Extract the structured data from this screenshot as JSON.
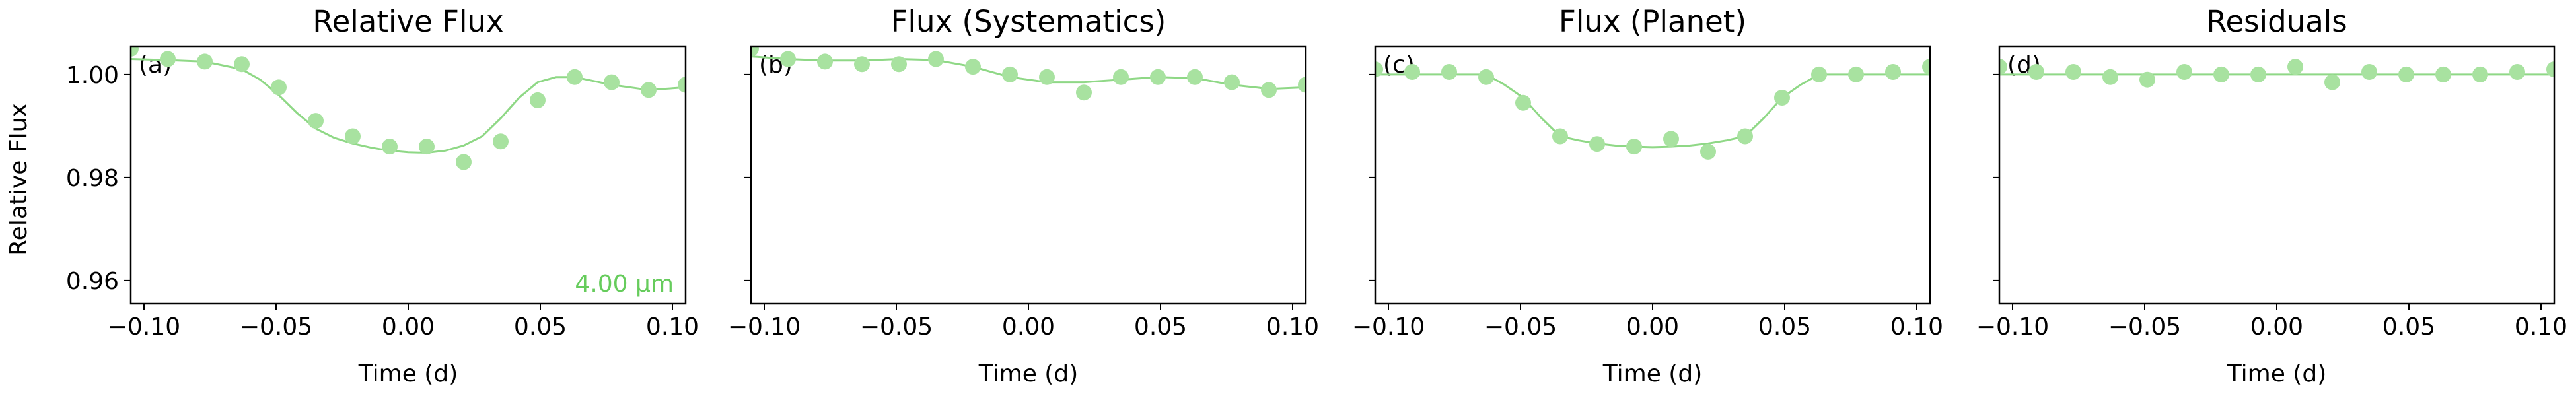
{
  "figure": {
    "ylabel": "Relative Flux",
    "annotation": "4.00 μm",
    "colors": {
      "point": "#a8e2a0",
      "model": "#8fd886",
      "annotation": "#66cc5c",
      "axis": "#000000"
    }
  },
  "chart_data": [
    {
      "type": "scatter",
      "title": "Relative Flux",
      "panel_label": "(a)",
      "xlabel": "Time (d)",
      "ylabel": "Relative Flux",
      "xlim": [
        -0.105,
        0.105
      ],
      "ylim": [
        0.9555,
        1.0055
      ],
      "xticks": [
        "-0.10",
        "-0.05",
        "0.00",
        "0.05",
        "0.10"
      ],
      "yticks": [
        "0.96",
        "0.98",
        "1.00"
      ],
      "show_yticklabels": true,
      "points": {
        "x": [
          -0.105,
          -0.091,
          -0.077,
          -0.063,
          -0.049,
          -0.035,
          -0.021,
          -0.007,
          0.007,
          0.021,
          0.035,
          0.049,
          0.063,
          0.077,
          0.091,
          0.105
        ],
        "y": [
          1.005,
          1.003,
          1.0025,
          1.002,
          0.9975,
          0.991,
          0.988,
          0.986,
          0.986,
          0.983,
          0.987,
          0.995,
          0.9995,
          0.9985,
          0.997,
          0.998
        ]
      },
      "model": {
        "x": [
          -0.105,
          -0.091,
          -0.077,
          -0.063,
          -0.056,
          -0.049,
          -0.042,
          -0.035,
          -0.028,
          -0.021,
          -0.014,
          -0.007,
          0.0,
          0.007,
          0.014,
          0.021,
          0.028,
          0.035,
          0.042,
          0.049,
          0.056,
          0.063,
          0.077,
          0.091,
          0.105
        ],
        "y": [
          1.003,
          1.0028,
          1.0025,
          1.001,
          0.999,
          0.996,
          0.9925,
          0.9895,
          0.9877,
          0.9866,
          0.9858,
          0.9852,
          0.9849,
          0.9848,
          0.9852,
          0.9862,
          0.988,
          0.9915,
          0.9955,
          0.9985,
          0.9995,
          0.9995,
          0.998,
          0.997,
          0.9975
        ]
      }
    },
    {
      "type": "scatter",
      "title": "Flux (Systematics)",
      "panel_label": "(b)",
      "xlabel": "Time (d)",
      "ylabel": "",
      "xlim": [
        -0.105,
        0.105
      ],
      "ylim": [
        0.9555,
        1.0055
      ],
      "xticks": [
        "-0.10",
        "-0.05",
        "0.00",
        "0.05",
        "0.10"
      ],
      "yticks": [
        "0.96",
        "0.98",
        "1.00"
      ],
      "show_yticklabels": false,
      "points": {
        "x": [
          -0.105,
          -0.091,
          -0.077,
          -0.063,
          -0.049,
          -0.035,
          -0.021,
          -0.007,
          0.007,
          0.021,
          0.035,
          0.049,
          0.063,
          0.077,
          0.091,
          0.105
        ],
        "y": [
          1.005,
          1.003,
          1.0025,
          1.002,
          1.002,
          1.003,
          1.0015,
          1.0,
          0.9995,
          0.9965,
          0.9995,
          0.9995,
          0.9995,
          0.9985,
          0.997,
          0.998
        ]
      },
      "model": {
        "x": [
          -0.105,
          -0.091,
          -0.077,
          -0.063,
          -0.049,
          -0.035,
          -0.021,
          -0.007,
          0.007,
          0.021,
          0.035,
          0.049,
          0.063,
          0.077,
          0.091,
          0.105
        ],
        "y": [
          1.0035,
          1.003,
          1.0027,
          1.0027,
          1.003,
          1.0028,
          1.0015,
          0.9995,
          0.9985,
          0.9985,
          0.999,
          0.9995,
          0.9993,
          0.998,
          0.9972,
          0.9975
        ]
      }
    },
    {
      "type": "scatter",
      "title": "Flux (Planet)",
      "panel_label": "(c)",
      "xlabel": "Time (d)",
      "ylabel": "",
      "xlim": [
        -0.105,
        0.105
      ],
      "ylim": [
        0.9555,
        1.0055
      ],
      "xticks": [
        "-0.10",
        "-0.05",
        "0.00",
        "0.05",
        "0.10"
      ],
      "yticks": [
        "0.96",
        "0.98",
        "1.00"
      ],
      "show_yticklabels": false,
      "points": {
        "x": [
          -0.105,
          -0.091,
          -0.077,
          -0.063,
          -0.049,
          -0.035,
          -0.021,
          -0.007,
          0.007,
          0.021,
          0.035,
          0.049,
          0.063,
          0.077,
          0.091,
          0.105
        ],
        "y": [
          1.001,
          1.0005,
          1.0005,
          0.9995,
          0.9945,
          0.988,
          0.9865,
          0.986,
          0.9875,
          0.985,
          0.988,
          0.9955,
          1.0,
          1.0,
          1.0005,
          1.0015
        ]
      },
      "model": {
        "x": [
          -0.105,
          -0.063,
          -0.056,
          -0.049,
          -0.042,
          -0.035,
          -0.028,
          -0.021,
          -0.014,
          -0.007,
          0.0,
          0.007,
          0.014,
          0.021,
          0.028,
          0.035,
          0.042,
          0.049,
          0.056,
          0.063,
          0.105
        ],
        "y": [
          1.0,
          1.0,
          0.998,
          0.9955,
          0.9915,
          0.988,
          0.9872,
          0.9866,
          0.9862,
          0.986,
          0.9859,
          0.986,
          0.9862,
          0.9866,
          0.9872,
          0.988,
          0.9915,
          0.9955,
          0.998,
          1.0,
          1.0
        ]
      }
    },
    {
      "type": "scatter",
      "title": "Residuals",
      "panel_label": "(d)",
      "xlabel": "Time (d)",
      "ylabel": "",
      "xlim": [
        -0.105,
        0.105
      ],
      "ylim": [
        0.9555,
        1.0055
      ],
      "xticks": [
        "-0.10",
        "-0.05",
        "0.00",
        "0.05",
        "0.10"
      ],
      "yticks": [
        "0.96",
        "0.98",
        "1.00"
      ],
      "show_yticklabels": false,
      "points": {
        "x": [
          -0.105,
          -0.091,
          -0.077,
          -0.063,
          -0.049,
          -0.035,
          -0.021,
          -0.007,
          0.007,
          0.021,
          0.035,
          0.049,
          0.063,
          0.077,
          0.091,
          0.105
        ],
        "y": [
          1.0015,
          1.0005,
          1.0005,
          0.9995,
          0.999,
          1.0005,
          1.0,
          1.0,
          1.0015,
          0.9985,
          1.0005,
          1.0,
          1.0,
          1.0,
          1.0005,
          1.001
        ]
      },
      "model": {
        "x": [
          -0.105,
          0.105
        ],
        "y": [
          1.0,
          1.0
        ]
      }
    }
  ]
}
